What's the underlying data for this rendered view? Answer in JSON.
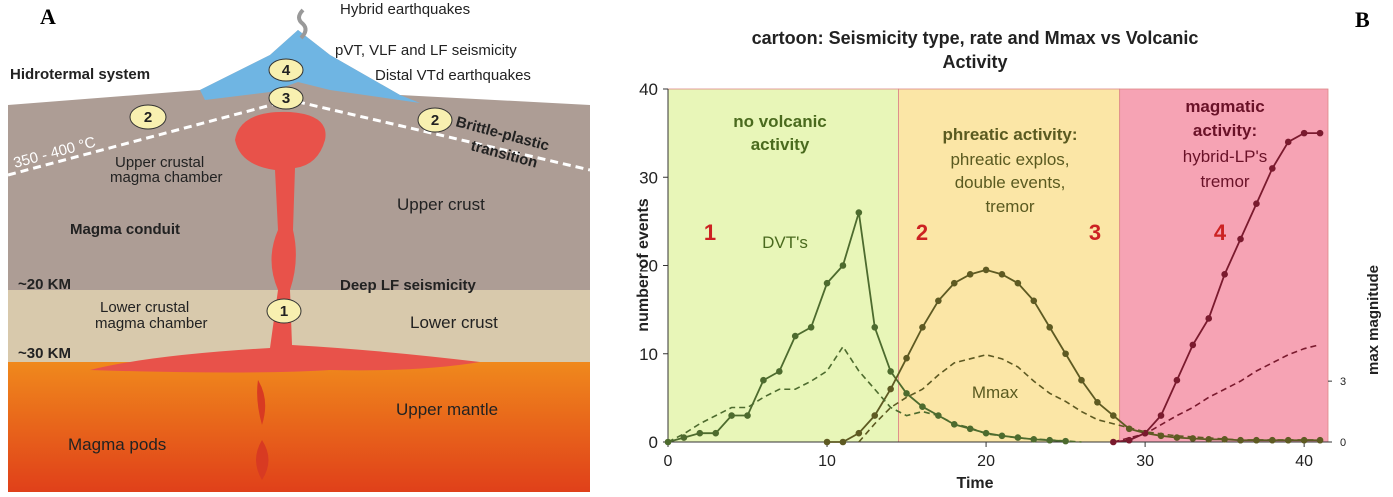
{
  "panel_labels": [
    "A",
    "B"
  ],
  "diagram": {
    "labels": [
      "Hybrid earthquakes",
      "pVT, VLF and LF seismicity",
      "Hidrotermal system",
      "Distal VTd earthquakes",
      "350 - 400 °C",
      "Brittle-plastic",
      "transition",
      "Upper crustal",
      "magma chamber",
      "Upper crust",
      "Magma conduit",
      "~20 KM",
      "Deep LF seismicity",
      "Lower crustal",
      "magma chamber",
      "Lower crust",
      "~30 KM",
      "Upper mantle",
      "Magma pods"
    ],
    "markers": [
      "2",
      "4",
      "3",
      "2",
      "1"
    ]
  },
  "chart_data": {
    "type": "line",
    "title": [
      "cartoon: Seismicity type, rate and Mmax vs Volcanic",
      "Activity"
    ],
    "xlabel": "Time",
    "ylabel": "number of events",
    "y2label": "max magnitude",
    "xlim": [
      0,
      41.5
    ],
    "xticks": [
      0,
      10,
      20,
      30,
      40
    ],
    "ylim": [
      0,
      40
    ],
    "yticks": [
      0,
      10,
      20,
      30,
      40
    ],
    "y2lim": [
      0,
      17.4
    ],
    "y2ticks": [
      0,
      3
    ],
    "regions": [
      {
        "from": 0,
        "to": 14.5,
        "color": "#e8f6b8"
      },
      {
        "from": 14.5,
        "to": 28.4,
        "color": "#fbe6a6"
      },
      {
        "from": 28.4,
        "to": 41.5,
        "color": "#f6a3b4"
      }
    ],
    "annotations": {
      "no_volcanic": [
        "no volcanic",
        "activity"
      ],
      "dvt": "DVT's",
      "phreatic": [
        "phreatic activity:",
        "phreatic explos,",
        "double events,",
        "tremor"
      ],
      "magmatic": [
        "magmatic",
        "activity:",
        "hybrid-LP's",
        "tremor"
      ],
      "mmax": "Mmax",
      "stages": [
        "1",
        "2",
        "3",
        "4"
      ]
    },
    "series": [
      {
        "color": "#4d6b2e",
        "marker": true,
        "x": [
          0,
          1,
          2,
          3,
          4,
          5,
          6,
          7,
          8,
          9,
          10,
          11,
          12,
          13,
          14,
          15,
          16,
          17,
          18,
          19,
          20,
          21,
          22,
          23,
          24,
          25
        ],
        "values": [
          0,
          0.5,
          1,
          1,
          3,
          3,
          7,
          8,
          12,
          13,
          18,
          20,
          26,
          13,
          8,
          5.5,
          4,
          3,
          2,
          1.5,
          1,
          0.7,
          0.5,
          0.3,
          0.2,
          0.1
        ]
      },
      {
        "color": "#5e5a22",
        "marker": true,
        "x": [
          10,
          11,
          12,
          13,
          14,
          15,
          16,
          17,
          18,
          19,
          20,
          21,
          22,
          23,
          24,
          25,
          26,
          27,
          28,
          29,
          30,
          31,
          32,
          33,
          34,
          35,
          36,
          37,
          38,
          39,
          40,
          41
        ],
        "values": [
          0,
          0,
          1,
          3,
          6,
          9.5,
          13,
          16,
          18,
          19,
          19.5,
          19,
          18,
          16,
          13,
          10,
          7,
          4.5,
          3,
          1.5,
          1,
          0.7,
          0.5,
          0.4,
          0.3,
          0.3,
          0.2,
          0.2,
          0.2,
          0.2,
          0.2,
          0.2
        ]
      },
      {
        "color": "#7a1a2e",
        "marker": true,
        "x": [
          28,
          29,
          30,
          31,
          32,
          33,
          34,
          35,
          36,
          37,
          38,
          39,
          40,
          41
        ],
        "values": [
          0,
          0.2,
          1,
          3,
          7,
          11,
          14,
          19,
          23,
          27,
          31,
          34,
          35,
          35
        ]
      },
      {
        "color": "#4d6b2e",
        "dash": true,
        "axis": "y2",
        "x": [
          0,
          1,
          2,
          3,
          4,
          5,
          6,
          7,
          8,
          9,
          10,
          11,
          12,
          13,
          14,
          15,
          16,
          17,
          18,
          19,
          20,
          22,
          24,
          26
        ],
        "values": [
          0,
          0.4,
          0.9,
          1.3,
          1.7,
          1.7,
          2.2,
          2.6,
          2.6,
          3,
          3.5,
          4.7,
          3.5,
          2.6,
          1.7,
          1.3,
          1.5,
          1.3,
          0.9,
          0.7,
          0.4,
          0.2,
          0.1,
          0
        ]
      },
      {
        "color": "#5e5a22",
        "dash": true,
        "axis": "y2",
        "x": [
          12,
          13,
          14,
          15,
          16,
          17,
          18,
          19,
          20,
          21,
          22,
          23,
          24,
          25,
          26,
          27,
          28,
          29,
          30,
          32,
          34,
          36,
          38,
          41
        ],
        "values": [
          0,
          0.9,
          1.7,
          2.2,
          2.6,
          3.3,
          3.9,
          4.1,
          4.3,
          4.1,
          3.7,
          3,
          2.4,
          2,
          1.5,
          1.1,
          0.9,
          0.7,
          0.5,
          0.3,
          0.2,
          0.1,
          0.1,
          0.1
        ]
      },
      {
        "color": "#7a1a2e",
        "dash": true,
        "axis": "y2",
        "x": [
          28,
          30,
          32,
          33,
          34,
          35,
          36,
          37,
          38,
          39,
          40,
          41
        ],
        "values": [
          0,
          0.4,
          1.3,
          1.7,
          2.2,
          2.6,
          3,
          3.5,
          3.9,
          4.3,
          4.6,
          4.8
        ]
      }
    ]
  }
}
